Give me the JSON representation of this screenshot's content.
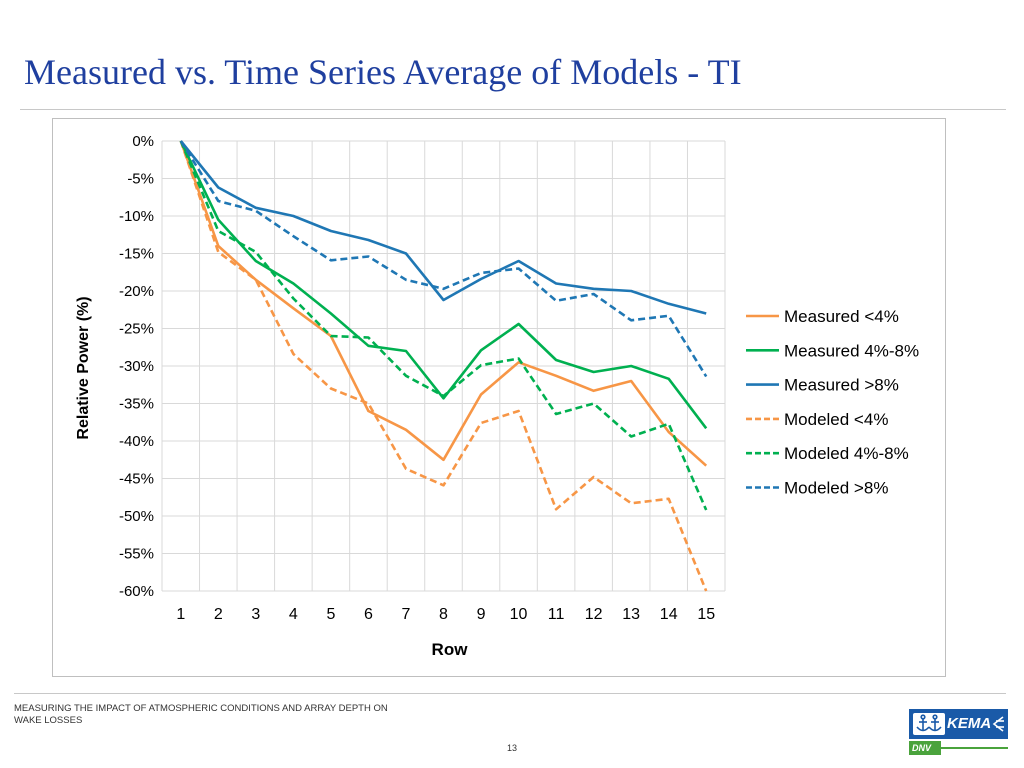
{
  "slide": {
    "title": "Measured vs. Time Series Average of Models - TI",
    "footer": "MEASURING THE IMPACT OF ATMOSPHERIC CONDITIONS AND ARRAY DEPTH ON WAKE LOSSES",
    "page_number": "13",
    "logo": {
      "top_text": "KEMA",
      "bottom_text": "DNV",
      "top_color": "#1a5aa8",
      "bottom_color": "#4aa33c"
    }
  },
  "chart_data": {
    "type": "line",
    "title": "",
    "xlabel": "Row",
    "ylabel": "Relative Power  (%)",
    "x": [
      1,
      2,
      3,
      4,
      5,
      6,
      7,
      8,
      9,
      10,
      11,
      12,
      13,
      14,
      15
    ],
    "ylim": [
      -60,
      0
    ],
    "yticks": [
      0,
      -5,
      -10,
      -15,
      -20,
      -25,
      -30,
      -35,
      -40,
      -45,
      -50,
      -55,
      -60
    ],
    "ytick_labels": [
      "0%",
      "-5%",
      "-10%",
      "-15%",
      "-20%",
      "-25%",
      "-30%",
      "-35%",
      "-40%",
      "-45%",
      "-50%",
      "-55%",
      "-60%"
    ],
    "grid": true,
    "legend_position": "right",
    "series": [
      {
        "name": "Measured <4%",
        "color": "#f79646",
        "dash": "solid",
        "values": [
          0,
          -14,
          -18.5,
          -22.3,
          -26,
          -36,
          -38.5,
          -42.5,
          -33.8,
          -29.5,
          -31.3,
          -33.3,
          -32,
          -38.8,
          -43.3
        ]
      },
      {
        "name": "Measured 4%-8%",
        "color": "#00b050",
        "dash": "solid",
        "values": [
          0,
          -10.5,
          -16,
          -19,
          -23,
          -27.3,
          -28,
          -34.3,
          -27.9,
          -24.4,
          -29.2,
          -30.8,
          -30,
          -31.7,
          -38.3
        ]
      },
      {
        "name": "Measured >8%",
        "color": "#1f77b4",
        "dash": "solid",
        "values": [
          0,
          -6.2,
          -8.9,
          -10,
          -12,
          -13.2,
          -15,
          -21.2,
          -18.4,
          -16,
          -19,
          -19.7,
          -20,
          -21.7,
          -23
        ]
      },
      {
        "name": "Modeled <4%",
        "color": "#f79646",
        "dash": "dashed",
        "values": [
          0,
          -14.8,
          -18.5,
          -28.4,
          -33,
          -35,
          -43.7,
          -45.9,
          -37.6,
          -36,
          -49.1,
          -44.8,
          -48.3,
          -47.7,
          -60
        ]
      },
      {
        "name": "Modeled 4%-8%",
        "color": "#00b050",
        "dash": "dashed",
        "values": [
          0,
          -12,
          -14.8,
          -21,
          -26,
          -26.2,
          -31.3,
          -34,
          -29.9,
          -29,
          -36.4,
          -35,
          -39.4,
          -37.7,
          -49.2
        ]
      },
      {
        "name": "Modeled >8%",
        "color": "#1f77b4",
        "dash": "dashed",
        "values": [
          0,
          -8,
          -9.3,
          -12.7,
          -15.9,
          -15.4,
          -18.5,
          -19.7,
          -17.6,
          -17,
          -21.3,
          -20.4,
          -23.9,
          -23.3,
          -31.4
        ]
      }
    ]
  }
}
